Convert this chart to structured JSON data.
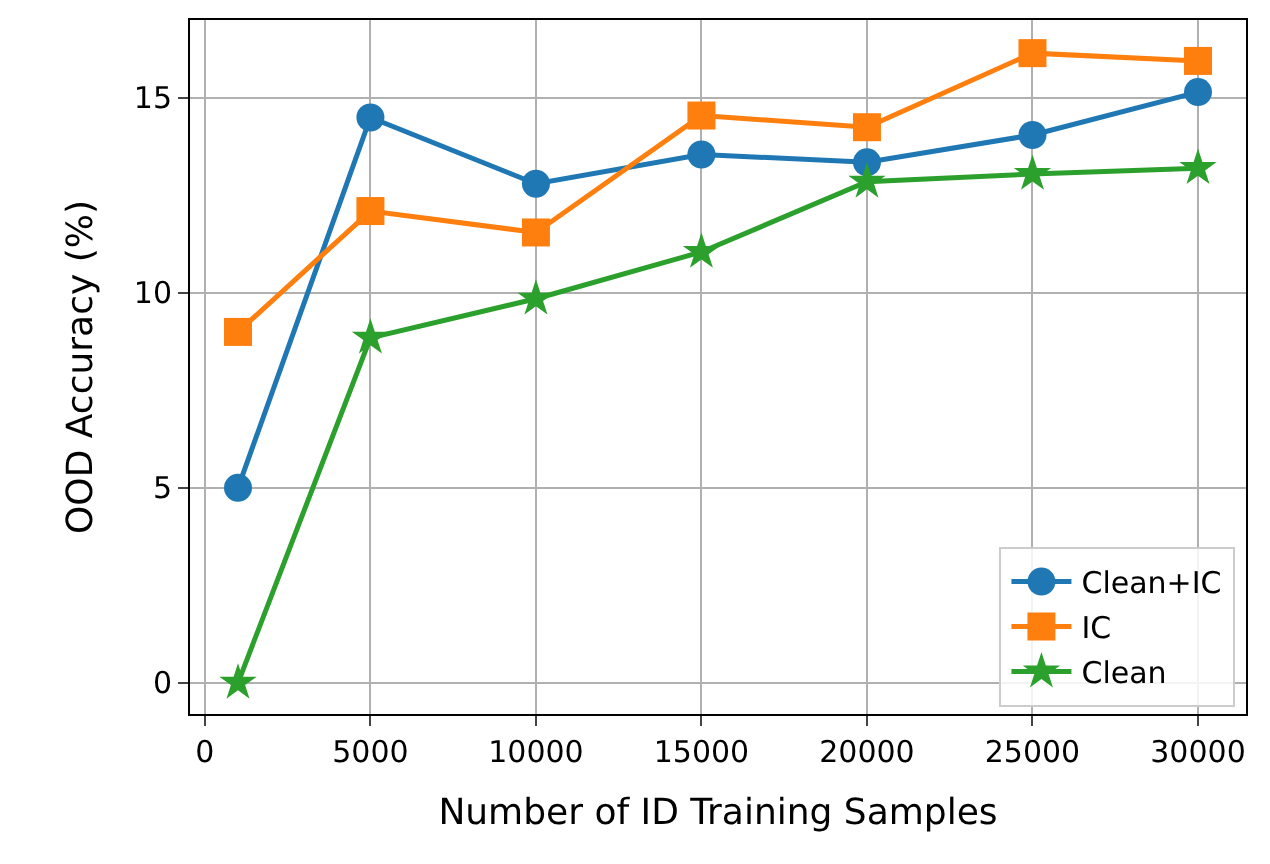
{
  "chart_data": {
    "type": "line",
    "xlabel": "Number of ID Training Samples",
    "ylabel": "OOD Accuracy (%)",
    "x": [
      1000,
      5000,
      10000,
      15000,
      20000,
      25000,
      30000
    ],
    "series": [
      {
        "name": "Clean+IC",
        "color": "#1f77b4",
        "marker": "circle",
        "values": [
          5.0,
          14.5,
          12.8,
          13.55,
          13.35,
          14.05,
          15.15
        ]
      },
      {
        "name": "IC",
        "color": "#ff7f0e",
        "marker": "square",
        "values": [
          9.0,
          12.1,
          11.55,
          14.55,
          14.25,
          16.15,
          15.95
        ]
      },
      {
        "name": "Clean",
        "color": "#2ca02c",
        "marker": "star",
        "values": [
          0.0,
          8.85,
          9.85,
          11.05,
          12.85,
          13.05,
          13.2
        ]
      }
    ],
    "xlim": [
      -450,
      31450
    ],
    "xticks": [
      0,
      5000,
      10000,
      15000,
      20000,
      25000,
      30000
    ],
    "ylim": [
      -0.8,
      17.0
    ],
    "yticks": [
      0,
      5,
      10,
      15
    ],
    "grid": true,
    "legend": "bottom right",
    "line_style": "solid"
  }
}
